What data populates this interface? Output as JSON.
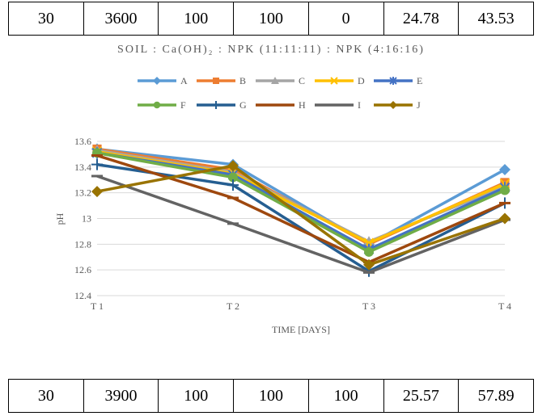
{
  "table_top": {
    "cells": [
      "30",
      "3600",
      "100",
      "100",
      "0",
      "24.78",
      "43.53"
    ]
  },
  "table_bottom": {
    "cells": [
      "30",
      "3900",
      "100",
      "100",
      "100",
      "25.57",
      "57.89"
    ]
  },
  "chart_data": {
    "type": "line",
    "title": "SOIL : Ca(OH)₂ : NPK (11:11:11) : NPK (4:16:16)",
    "xlabel": "TIME [DAYS]",
    "ylabel": "pH",
    "categories": [
      "T 1",
      "T 2",
      "T 3",
      "T 4"
    ],
    "ylim": [
      12.4,
      13.6
    ],
    "yticks": [
      "12.4",
      "12.6",
      "12.8",
      "13",
      "13.2",
      "13.4",
      "13.6"
    ],
    "grid": true,
    "legend": "top",
    "series": [
      {
        "name": "A",
        "color": "#5B9BD5",
        "marker": "diamond",
        "values": [
          13.54,
          13.42,
          12.8,
          13.38
        ]
      },
      {
        "name": "B",
        "color": "#ED7D31",
        "marker": "square",
        "values": [
          13.54,
          13.38,
          12.8,
          13.28
        ]
      },
      {
        "name": "C",
        "color": "#A5A5A5",
        "marker": "triangle",
        "values": [
          13.53,
          13.36,
          12.82,
          13.25
        ]
      },
      {
        "name": "D",
        "color": "#FFC000",
        "marker": "x",
        "values": [
          13.52,
          13.35,
          12.81,
          13.27
        ]
      },
      {
        "name": "E",
        "color": "#4472C4",
        "marker": "star",
        "values": [
          13.51,
          13.34,
          12.76,
          13.24
        ]
      },
      {
        "name": "F",
        "color": "#70AD47",
        "marker": "circle",
        "values": [
          13.51,
          13.32,
          12.74,
          13.22
        ]
      },
      {
        "name": "G",
        "color": "#255E91",
        "marker": "plus",
        "values": [
          13.42,
          13.26,
          12.59,
          13.12
        ]
      },
      {
        "name": "H",
        "color": "#9E480E",
        "marker": "dash",
        "values": [
          13.49,
          13.16,
          12.66,
          13.12
        ]
      },
      {
        "name": "I",
        "color": "#636363",
        "marker": "dash",
        "values": [
          13.33,
          12.96,
          12.58,
          12.99
        ]
      },
      {
        "name": "J",
        "color": "#997300",
        "marker": "diamond",
        "values": [
          13.21,
          13.41,
          12.64,
          13.0
        ]
      }
    ]
  }
}
